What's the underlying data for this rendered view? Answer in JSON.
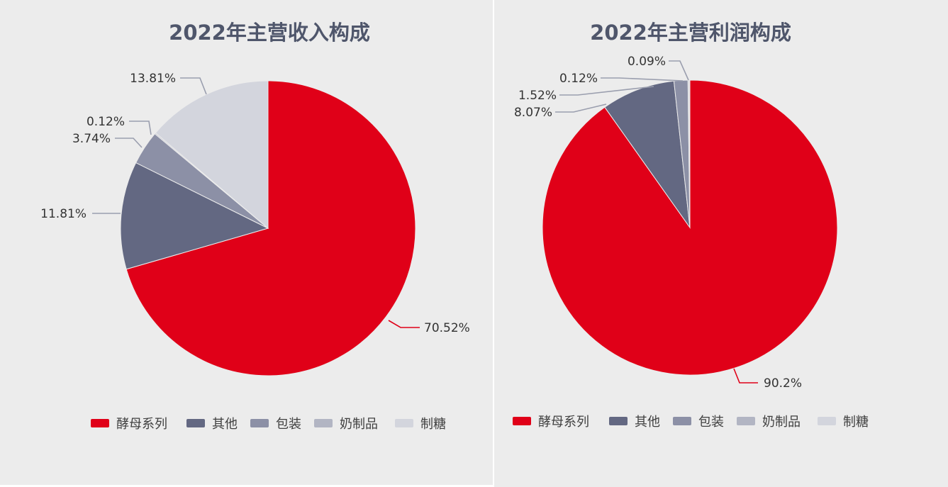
{
  "colors": {
    "酵母系列": "#e00018",
    "其他": "#636882",
    "包装": "#8c90a6",
    "奶制品": "#b2b5c3",
    "制糖": "#d3d5dd",
    "leader": "#9a9eae",
    "leader_main": "#e00018"
  },
  "chart_data": [
    {
      "type": "pie",
      "title": "2022年主营收入构成",
      "legend_position": "bottom",
      "slices": [
        {
          "name": "酵母系列",
          "value": 70.52,
          "label": "70.52%"
        },
        {
          "name": "其他",
          "value": 11.81,
          "label": "11.81%"
        },
        {
          "name": "包装",
          "value": 3.74,
          "label": "3.74%"
        },
        {
          "name": "奶制品",
          "value": 0.12,
          "label": "0.12%"
        },
        {
          "name": "制糖",
          "value": 13.81,
          "label": "13.81%"
        }
      ],
      "legend": [
        "酵母系列",
        "其他",
        "包装",
        "奶制品",
        "制糖"
      ]
    },
    {
      "type": "pie",
      "title": "2022年主营利润构成",
      "legend_position": "bottom",
      "slices": [
        {
          "name": "酵母系列",
          "value": 90.2,
          "label": "90.2%"
        },
        {
          "name": "其他",
          "value": 8.07,
          "label": "8.07%"
        },
        {
          "name": "包装",
          "value": 1.52,
          "label": "1.52%"
        },
        {
          "name": "奶制品",
          "value": 0.12,
          "label": "0.12%"
        },
        {
          "name": "制糖",
          "value": 0.09,
          "label": "0.09%"
        }
      ],
      "legend": [
        "酵母系列",
        "其他",
        "包装",
        "奶制品",
        "制糖"
      ]
    }
  ]
}
